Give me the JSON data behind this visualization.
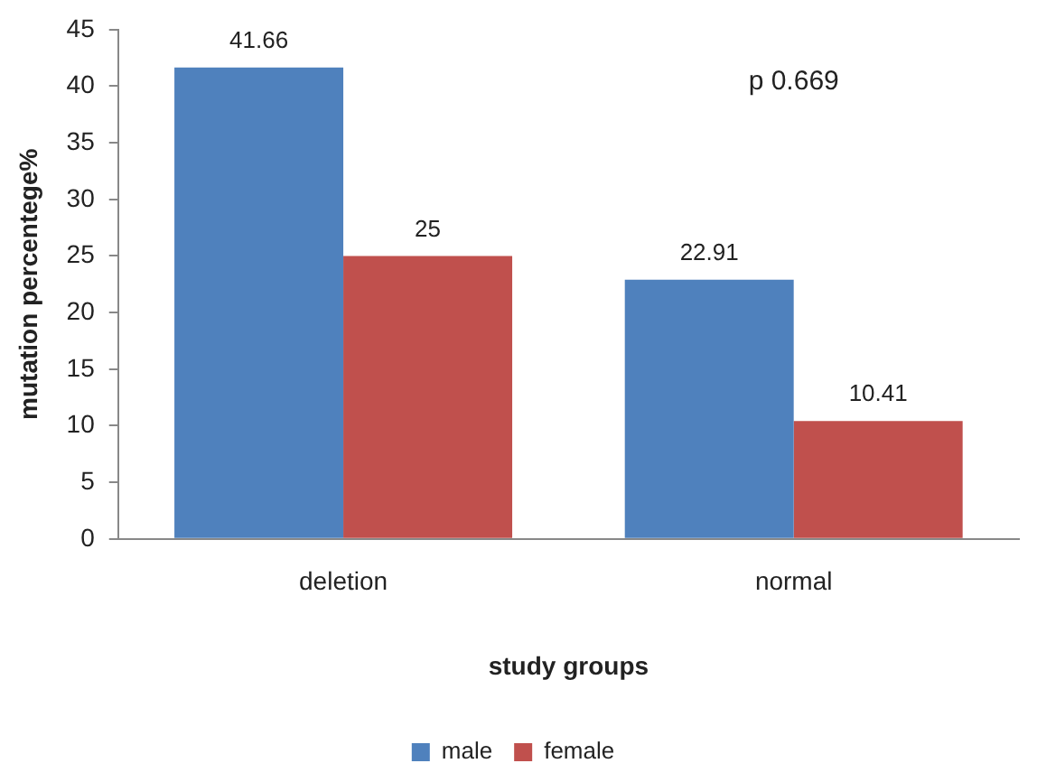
{
  "chart_data": {
    "type": "bar",
    "xlabel": "study groups",
    "ylabel": "mutation percentege%",
    "categories": [
      "deletion",
      "normal"
    ],
    "series": [
      {
        "name": "male",
        "color": "#4f81bd",
        "values": [
          41.66,
          22.91
        ]
      },
      {
        "name": "female",
        "color": "#c0504d",
        "values": [
          25,
          10.41
        ]
      }
    ],
    "ylim": [
      0,
      45
    ],
    "yticks": [
      0,
      5,
      10,
      15,
      20,
      25,
      30,
      35,
      40,
      45
    ],
    "grid": false,
    "legend": "bottom",
    "data_labels": true,
    "annotations": [
      "p 0.669"
    ]
  }
}
